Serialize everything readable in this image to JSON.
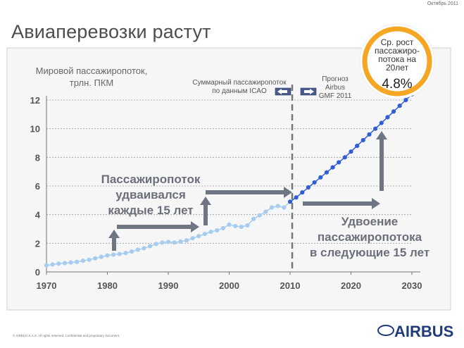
{
  "header": {
    "date": "Октябрь 2011",
    "title": "Авиаперевозки растут"
  },
  "footer": {
    "copyright": "© AIRBUS S.A.S. All rights reserved. Confidential and proprietary document.",
    "brand": "AIRBUS"
  },
  "colors": {
    "history": "#a6ccf0",
    "forecast": "#2f5ed6",
    "arrow": "#6f7582",
    "badge_ring": "#f5a623",
    "brand": "#1f3b7a"
  },
  "chart_data": {
    "type": "line",
    "ylabel": "Мировой пассажиропоток,\nтрлн. ПКМ",
    "xlim": [
      1970,
      2030
    ],
    "ylim": [
      0,
      12.5
    ],
    "xticks": [
      1970,
      1980,
      1990,
      2000,
      2010,
      2020,
      2030
    ],
    "yticks": [
      0,
      2,
      4,
      6,
      8,
      10,
      12
    ],
    "grid": true,
    "series": [
      {
        "style": "history",
        "x": [
          1970,
          1971,
          1972,
          1973,
          1974,
          1975,
          1976,
          1977,
          1978,
          1979,
          1980,
          1981,
          1982,
          1983,
          1984,
          1985,
          1986,
          1987,
          1988,
          1989,
          1990,
          1991,
          1992,
          1993,
          1994,
          1995,
          1996,
          1997,
          1998,
          1999,
          2000,
          2001,
          2002,
          2003,
          2004,
          2005,
          2006,
          2007,
          2008,
          2009,
          2010
        ],
        "y": [
          0.45,
          0.52,
          0.58,
          0.62,
          0.66,
          0.7,
          0.78,
          0.85,
          0.95,
          1.05,
          1.15,
          1.2,
          1.25,
          1.32,
          1.42,
          1.55,
          1.65,
          1.8,
          1.95,
          2.05,
          2.1,
          2.05,
          2.12,
          2.2,
          2.35,
          2.5,
          2.65,
          2.8,
          2.9,
          3.05,
          3.3,
          3.2,
          3.15,
          3.25,
          3.7,
          3.95,
          4.2,
          4.5,
          4.6,
          4.5,
          4.9
        ]
      },
      {
        "style": "forecast",
        "x": [
          2010,
          2011,
          2012,
          2013,
          2014,
          2015,
          2016,
          2017,
          2018,
          2019,
          2020,
          2021,
          2022,
          2023,
          2024,
          2025,
          2026,
          2027,
          2028,
          2029,
          2030
        ],
        "y": [
          4.9,
          5.2,
          5.55,
          5.9,
          6.25,
          6.6,
          6.95,
          7.3,
          7.65,
          8.0,
          8.4,
          8.8,
          9.2,
          9.6,
          10.0,
          10.4,
          10.8,
          11.2,
          11.6,
          12.0,
          12.4
        ]
      }
    ],
    "annotations": {
      "icao": "Суммарный пассажиропоток\nпо данным ICAO",
      "gmf": "Прогноз\nAirbus\nGMF 2011",
      "history_text": "Пассажиропоток\nудваивался\nкаждые 15 лет",
      "forecast_text": "Удвоение\nпассажиропотока\nв следующие 15 лет",
      "badge_text": "Ср. рост\nпассажиро-\nпотока на\n20лет",
      "badge_value": "4.8%"
    }
  }
}
